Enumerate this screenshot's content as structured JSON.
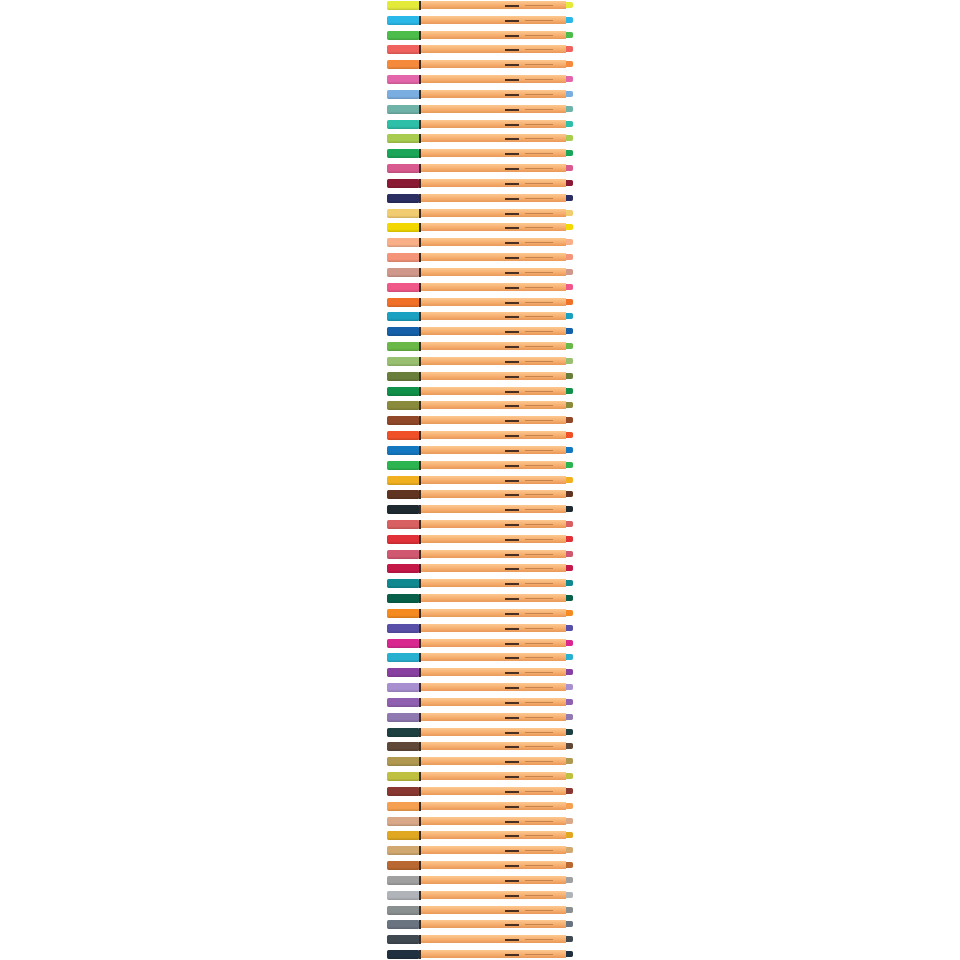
{
  "image": {
    "subject": "fineliner-pens",
    "barrel_color": "#f6ad6c",
    "pen_colors": [
      "#e4ea3a",
      "#2ab8e8",
      "#4cbc4a",
      "#f0625e",
      "#f58a3c",
      "#e466aa",
      "#7aaee0",
      "#6fb3a8",
      "#2dbfa8",
      "#a8cc50",
      "#1aa558",
      "#d85a8e",
      "#8a1a34",
      "#2a2e62",
      "#f2cc70",
      "#f2d800",
      "#f9b088",
      "#f49478",
      "#d0988a",
      "#f0588a",
      "#f07028",
      "#1aa0c0",
      "#1560a8",
      "#6ab848",
      "#98c070",
      "#6a7e3c",
      "#109048",
      "#8a8a3c",
      "#904828",
      "#f05028",
      "#1478c0",
      "#2cb450",
      "#f0b020",
      "#603420",
      "#1e2a30",
      "#d86060",
      "#e03038",
      "#d05870",
      "#c41848",
      "#108890",
      "#08604a",
      "#f58a20",
      "#5850a8",
      "#d82890",
      "#28b0d0",
      "#8840a0",
      "#a890d0",
      "#9060b0",
      "#9078b0",
      "#1e4040",
      "#604838",
      "#b09850",
      "#c0c040",
      "#883830",
      "#f5a050",
      "#d8a888",
      "#e0a820",
      "#d0a870",
      "#b86830",
      "#a0a0a0",
      "#b0b4b8",
      "#8a9090",
      "#6a7480",
      "#404850",
      "#203040"
    ]
  }
}
